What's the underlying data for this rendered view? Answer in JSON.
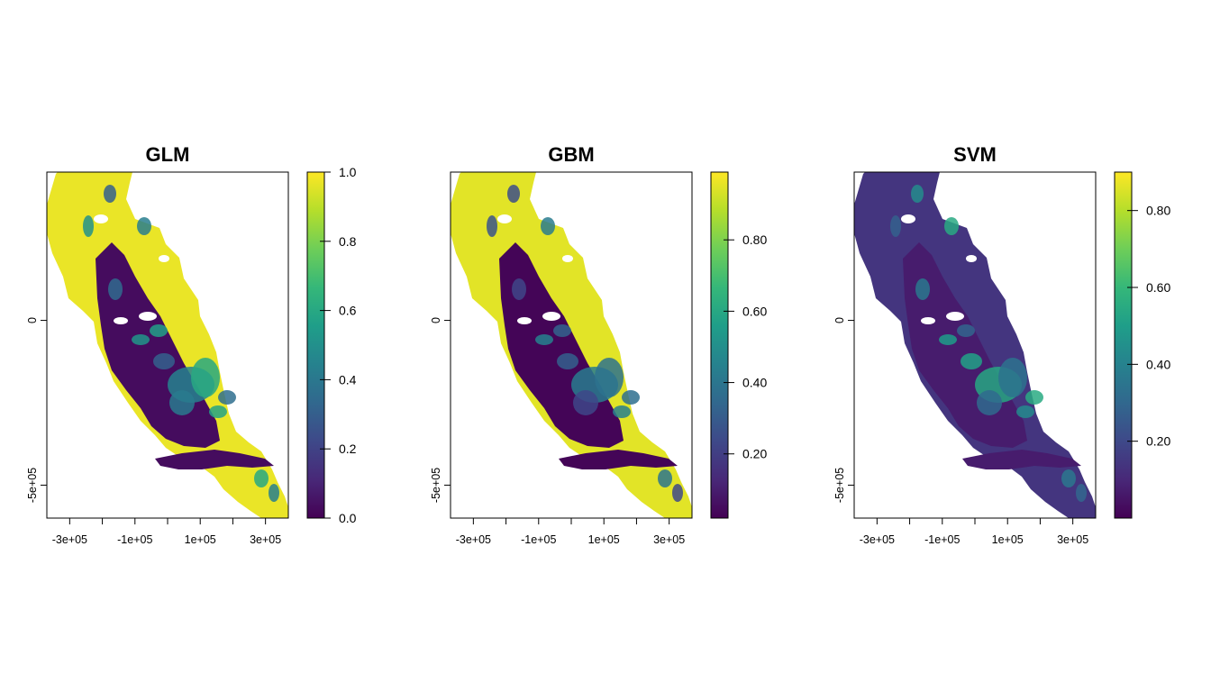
{
  "figure": {
    "colors": {
      "viridis": [
        "#440154",
        "#482878",
        "#3e4989",
        "#31688e",
        "#26828e",
        "#1f9e89",
        "#35b779",
        "#6ece58",
        "#b5de2b",
        "#fde725"
      ],
      "region_low": "#440154",
      "region_high": "#f0e51f"
    }
  },
  "chart_data": [
    {
      "type": "heatmap",
      "title": "GLM",
      "xlabel": "",
      "ylabel": "",
      "x_ticks": [
        {
          "value": -300000,
          "label": "-3e+05"
        },
        {
          "value": -100000,
          "label": "-1e+05"
        },
        {
          "value": 100000,
          "label": "1e+05"
        },
        {
          "value": 300000,
          "label": "3e+05"
        }
      ],
      "y_ticks": [
        {
          "value": 0,
          "label": "0"
        },
        {
          "value": -500000,
          "label": "-5e+05"
        }
      ],
      "xlim": [
        -370000,
        370000
      ],
      "ylim": [
        -600000,
        450000
      ],
      "legend": {
        "range": [
          0.0,
          1.0
        ],
        "ticks": [
          {
            "value": 0.0,
            "label": "0.0"
          },
          {
            "value": 0.2,
            "label": "0.2"
          },
          {
            "value": 0.4,
            "label": "0.4"
          },
          {
            "value": 0.6,
            "label": "0.6"
          },
          {
            "value": 0.8,
            "label": "0.8"
          },
          {
            "value": 1.0,
            "label": "1.0"
          }
        ]
      },
      "value_summary": {
        "background": 0.97,
        "central_valley": 0.03,
        "hotspots": 0.6
      }
    },
    {
      "type": "heatmap",
      "title": "GBM",
      "xlabel": "",
      "ylabel": "",
      "x_ticks": [
        {
          "value": -300000,
          "label": "-3e+05"
        },
        {
          "value": -100000,
          "label": "-1e+05"
        },
        {
          "value": 100000,
          "label": "1e+05"
        },
        {
          "value": 300000,
          "label": "3e+05"
        }
      ],
      "y_ticks": [
        {
          "value": 0,
          "label": "0"
        },
        {
          "value": -500000,
          "label": "-5e+05"
        }
      ],
      "xlim": [
        -370000,
        370000
      ],
      "ylim": [
        -600000,
        450000
      ],
      "legend": {
        "range": [
          0.02,
          0.99
        ],
        "ticks": [
          {
            "value": 0.2,
            "label": "0.20"
          },
          {
            "value": 0.4,
            "label": "0.40"
          },
          {
            "value": 0.6,
            "label": "0.60"
          },
          {
            "value": 0.8,
            "label": "0.80"
          }
        ]
      },
      "value_summary": {
        "background": 0.95,
        "central_valley": 0.03,
        "hotspots": 0.45
      }
    },
    {
      "type": "heatmap",
      "title": "SVM",
      "xlabel": "",
      "ylabel": "",
      "x_ticks": [
        {
          "value": -300000,
          "label": "-3e+05"
        },
        {
          "value": -100000,
          "label": "-1e+05"
        },
        {
          "value": 100000,
          "label": "1e+05"
        },
        {
          "value": 300000,
          "label": "3e+05"
        }
      ],
      "y_ticks": [
        {
          "value": 0,
          "label": "0"
        },
        {
          "value": -500000,
          "label": "-5e+05"
        }
      ],
      "xlim": [
        -370000,
        370000
      ],
      "ylim": [
        -600000,
        450000
      ],
      "legend": {
        "range": [
          0.0,
          0.9
        ],
        "ticks": [
          {
            "value": 0.2,
            "label": "0.20"
          },
          {
            "value": 0.4,
            "label": "0.40"
          },
          {
            "value": 0.6,
            "label": "0.60"
          },
          {
            "value": 0.8,
            "label": "0.80"
          }
        ]
      },
      "value_summary": {
        "background": 0.14,
        "central_valley": 0.07,
        "hotspots": 0.55
      }
    }
  ]
}
